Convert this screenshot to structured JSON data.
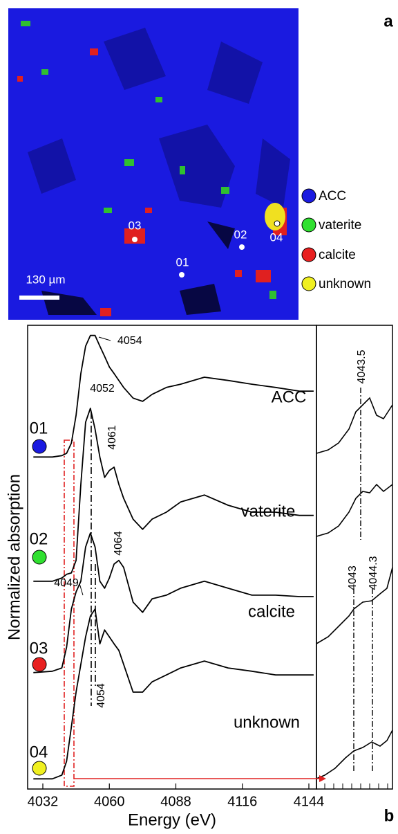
{
  "panel_a": {
    "label": "a",
    "scale_bar": "130 µm",
    "points": [
      "01",
      "02",
      "03",
      "04"
    ],
    "legend": [
      "ACC",
      "vaterite",
      "calcite",
      "unknown"
    ]
  },
  "chart_data": {
    "type": "line",
    "panel_label": "b",
    "x_label": "Energy (eV)",
    "y_label": "Normalized absorption",
    "xlim": [
      4025.6,
      4147.2
    ],
    "xticks": [
      4032,
      4060,
      4088,
      4116,
      4144
    ],
    "ylim": [
      0,
      100
    ],
    "x": [
      4028,
      4036,
      4040,
      4042,
      4044,
      4046,
      4048,
      4050,
      4052,
      4054,
      4056,
      4058,
      4060,
      4062,
      4064,
      4066,
      4070,
      4074,
      4078,
      4084,
      4090,
      4100,
      4110,
      4120,
      4130,
      4140,
      4146
    ],
    "sample_labels": [
      "01",
      "02",
      "03",
      "04"
    ],
    "series": [
      {
        "name": "ACC",
        "color": "#000000",
        "values": [
          71.6,
          71.6,
          71.9,
          72.4,
          74.6,
          80.6,
          89.6,
          95.5,
          97.8,
          97.8,
          95.5,
          93.3,
          91.0,
          89.6,
          88.1,
          86.6,
          84.3,
          83.6,
          85.1,
          86.6,
          87.3,
          88.8,
          88.1,
          87.3,
          86.6,
          85.8,
          85.8
        ]
      },
      {
        "name": "vaterite",
        "color": "#000000",
        "values": [
          44.8,
          44.8,
          45.5,
          46.3,
          46.6,
          49.3,
          65.7,
          79.1,
          82.1,
          77.6,
          71.6,
          67.2,
          68.7,
          69.4,
          65.7,
          62.7,
          58.2,
          56.0,
          58.2,
          59.7,
          61.9,
          63.4,
          61.2,
          59.7,
          59.7,
          59.0,
          59.0
        ]
      },
      {
        "name": "calcite",
        "color": "#000000",
        "values": [
          25.1,
          25.4,
          26.1,
          30.6,
          38.8,
          42.5,
          44.8,
          52.2,
          55.2,
          52.2,
          44.8,
          43.3,
          45.5,
          48.5,
          49.3,
          47.8,
          40.3,
          38.1,
          41.0,
          41.8,
          43.3,
          44.8,
          43.3,
          41.8,
          41.8,
          41.5,
          41.5
        ]
      },
      {
        "name": "unknown",
        "color": "#000000",
        "values": [
          2.2,
          2.2,
          3.0,
          6.0,
          13.4,
          20.9,
          26.9,
          32.8,
          37.3,
          38.8,
          31.3,
          34.3,
          32.8,
          31.3,
          29.9,
          26.9,
          20.9,
          20.9,
          23.1,
          24.6,
          26.1,
          27.6,
          26.1,
          25.4,
          24.6,
          24.6,
          24.6
        ]
      }
    ],
    "annotations": [
      "4054",
      "4052",
      "4061",
      "4064",
      "4049",
      "4054"
    ],
    "inset_annotations": [
      "4043.5",
      "4043",
      "4044.3"
    ]
  }
}
